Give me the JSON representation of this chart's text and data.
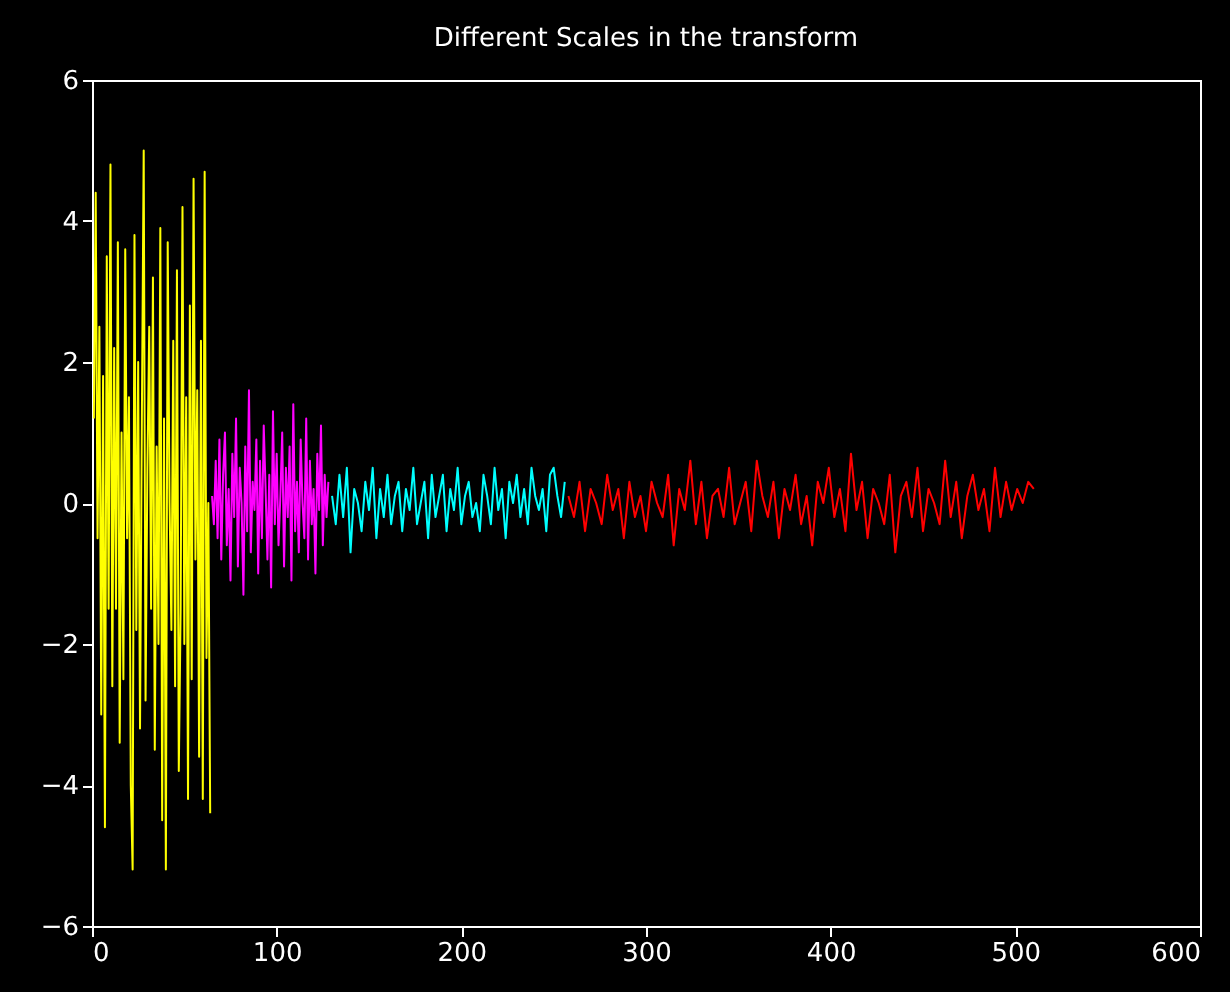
{
  "chart_data": {
    "type": "line",
    "title": "Different Scales in the transform",
    "xlim": [
      0,
      600
    ],
    "xticks": [
      0,
      100,
      200,
      300,
      400,
      500,
      600
    ],
    "ylim": [
      -6,
      6
    ],
    "yticks": [
      -6,
      -4,
      -2,
      0,
      2,
      4,
      6
    ],
    "series": [
      {
        "color": "#ffff00",
        "x": [
          1,
          2,
          3,
          4,
          5,
          6,
          7,
          8,
          9,
          10,
          11,
          12,
          13,
          14,
          15,
          16,
          17,
          18,
          19,
          20,
          21,
          22,
          23,
          24,
          25,
          26,
          27,
          28,
          29,
          30,
          31,
          32,
          33,
          34,
          35,
          36,
          37,
          38,
          39,
          40,
          41,
          42,
          43,
          44,
          45,
          46,
          47,
          48,
          49,
          50,
          51,
          52,
          53,
          54,
          55,
          56,
          57,
          58,
          59,
          60,
          61,
          62,
          63,
          64
        ],
        "values": [
          1.2,
          4.4,
          -0.5,
          2.5,
          -3,
          1.8,
          -4.6,
          3.5,
          -1.5,
          4.8,
          -2.6,
          2.2,
          -1.5,
          3.7,
          -3.4,
          1,
          -2.5,
          3.6,
          -0.5,
          1.5,
          -4,
          -5.2,
          3.8,
          -1.8,
          2,
          -3.2,
          1.2,
          5,
          -2.8,
          0.5,
          2.5,
          -1.5,
          3.2,
          -3.5,
          0.8,
          -2,
          3.9,
          -4.5,
          1.2,
          -5.2,
          3.7,
          0,
          -1.8,
          2.3,
          -2.6,
          3.3,
          -3.8,
          -1.5,
          4.2,
          -2,
          1.5,
          -4.2,
          2.8,
          -2.5,
          4.6,
          -0.8,
          1.6,
          -3.6,
          2.3,
          -4.2,
          4.7,
          -2.2,
          0,
          -4.4
        ]
      },
      {
        "color": "#ff00ff",
        "x": [
          65,
          66,
          67,
          68,
          69,
          70,
          71,
          72,
          73,
          74,
          75,
          76,
          77,
          78,
          79,
          80,
          81,
          82,
          83,
          84,
          85,
          86,
          87,
          88,
          89,
          90,
          91,
          92,
          93,
          94,
          95,
          96,
          97,
          98,
          99,
          100,
          101,
          102,
          103,
          104,
          105,
          106,
          107,
          108,
          109,
          110,
          111,
          112,
          113,
          114,
          115,
          116,
          117,
          118,
          119,
          120,
          121,
          122,
          123,
          124,
          125,
          126,
          127,
          128
        ],
        "values": [
          0.1,
          -0.3,
          0.6,
          -0.5,
          0.9,
          -0.8,
          0.4,
          1.0,
          -0.6,
          0.2,
          -1.1,
          0.7,
          -0.2,
          1.2,
          -0.9,
          0.5,
          0.0,
          -1.3,
          0.8,
          -0.4,
          1.6,
          -0.7,
          0.3,
          -0.1,
          0.9,
          -1.0,
          0.6,
          -0.5,
          1.1,
          0.2,
          -0.8,
          0.4,
          -1.2,
          1.3,
          -0.3,
          0.7,
          -0.6,
          0.1,
          1.0,
          -0.9,
          0.5,
          -0.2,
          0.8,
          -1.1,
          1.4,
          -0.4,
          0.3,
          -0.7,
          0.9,
          0.0,
          -0.5,
          1.2,
          -0.8,
          0.6,
          -0.3,
          0.2,
          -1.0,
          0.7,
          -0.1,
          1.1,
          -0.6,
          0.4,
          -0.2,
          0.3
        ]
      },
      {
        "color": "#00ffff",
        "x": [
          130,
          132,
          134,
          136,
          138,
          140,
          142,
          144,
          146,
          148,
          150,
          152,
          154,
          156,
          158,
          160,
          162,
          164,
          166,
          168,
          170,
          172,
          174,
          176,
          178,
          180,
          182,
          184,
          186,
          188,
          190,
          192,
          194,
          196,
          198,
          200,
          202,
          204,
          206,
          208,
          210,
          212,
          214,
          216,
          218,
          220,
          222,
          224,
          226,
          228,
          230,
          232,
          234,
          236,
          238,
          240,
          242,
          244,
          246,
          248,
          250,
          252,
          254,
          256
        ],
        "values": [
          0.1,
          -0.3,
          0.4,
          -0.2,
          0.5,
          -0.7,
          0.2,
          0.0,
          -0.4,
          0.3,
          -0.1,
          0.5,
          -0.5,
          0.2,
          -0.2,
          0.4,
          -0.3,
          0.1,
          0.3,
          -0.4,
          0.2,
          -0.1,
          0.5,
          -0.3,
          0.0,
          0.3,
          -0.5,
          0.4,
          -0.2,
          0.1,
          0.4,
          -0.4,
          0.2,
          -0.1,
          0.5,
          -0.3,
          0.1,
          0.3,
          -0.2,
          0.0,
          -0.4,
          0.4,
          0.1,
          -0.3,
          0.5,
          -0.1,
          0.2,
          -0.5,
          0.3,
          0.0,
          0.4,
          -0.2,
          0.2,
          -0.3,
          0.5,
          0.1,
          -0.1,
          0.2,
          -0.4,
          0.4,
          0.5,
          0.1,
          -0.2,
          0.3
        ]
      },
      {
        "color": "#ff0000",
        "x": [
          258,
          261,
          264,
          267,
          270,
          273,
          276,
          279,
          282,
          285,
          288,
          291,
          294,
          297,
          300,
          303,
          306,
          309,
          312,
          315,
          318,
          321,
          324,
          327,
          330,
          333,
          336,
          339,
          342,
          345,
          348,
          351,
          354,
          357,
          360,
          363,
          366,
          369,
          372,
          375,
          378,
          381,
          384,
          387,
          390,
          393,
          396,
          399,
          402,
          405,
          408,
          411,
          414,
          417,
          420,
          423,
          426,
          429,
          432,
          435,
          438,
          441,
          444,
          447,
          450,
          453,
          456,
          459,
          462,
          465,
          468,
          471,
          474,
          477,
          480,
          483,
          486,
          489,
          492,
          495,
          498,
          501,
          504,
          507,
          510
        ],
        "values": [
          0.1,
          -0.2,
          0.3,
          -0.4,
          0.2,
          0.0,
          -0.3,
          0.4,
          -0.1,
          0.2,
          -0.5,
          0.3,
          -0.2,
          0.1,
          -0.4,
          0.3,
          0.0,
          -0.2,
          0.4,
          -0.6,
          0.2,
          -0.1,
          0.6,
          -0.3,
          0.3,
          -0.5,
          0.1,
          0.2,
          -0.2,
          0.5,
          -0.3,
          0.0,
          0.3,
          -0.4,
          0.6,
          0.1,
          -0.2,
          0.3,
          -0.5,
          0.2,
          -0.1,
          0.4,
          -0.3,
          0.1,
          -0.6,
          0.3,
          0.0,
          0.5,
          -0.2,
          0.2,
          -0.4,
          0.7,
          -0.1,
          0.3,
          -0.5,
          0.2,
          0.0,
          -0.3,
          0.4,
          -0.7,
          0.1,
          0.3,
          -0.2,
          0.5,
          -0.4,
          0.2,
          0.0,
          -0.3,
          0.6,
          -0.2,
          0.3,
          -0.5,
          0.1,
          0.4,
          -0.1,
          0.2,
          -0.4,
          0.5,
          -0.2,
          0.3,
          -0.1,
          0.2,
          0.0,
          0.3,
          0.2
        ]
      }
    ]
  }
}
